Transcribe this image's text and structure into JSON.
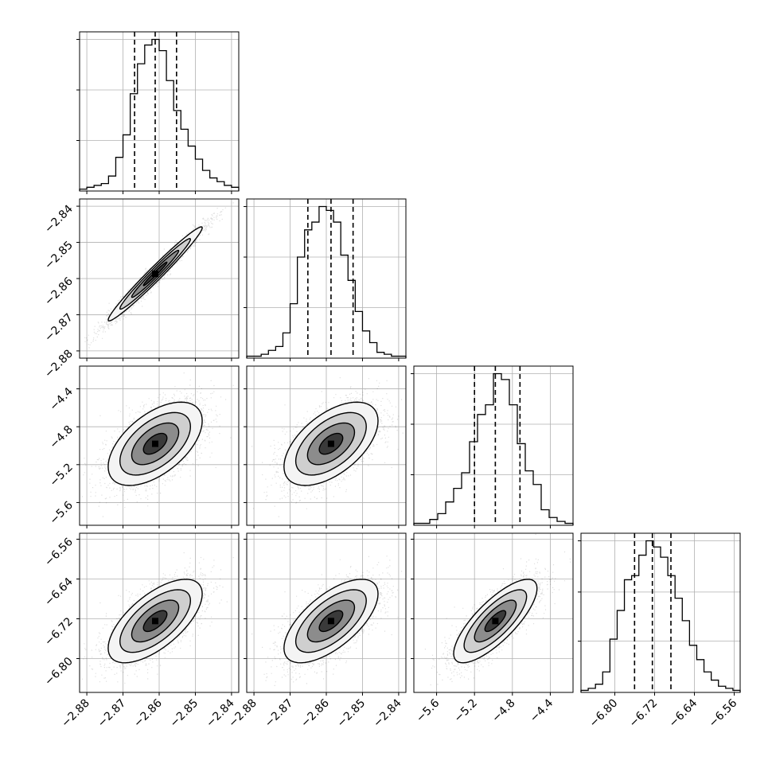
{
  "chart_data": {
    "type": "corner",
    "description_free": true,
    "n_params": 4,
    "params": [
      {
        "range": [
          -2.882,
          -2.838
        ],
        "ticks": [
          -2.88,
          -2.87,
          -2.86,
          -2.85,
          -2.84
        ],
        "tick_labels": [
          "−2.88",
          "−2.87",
          "−2.86",
          "−2.85",
          "−2.84"
        ],
        "quantiles": [
          -2.8668,
          -2.8611,
          -2.8552
        ],
        "hist_bins": [
          -2.882,
          -2.838,
          22
        ],
        "hist_counts": [
          1,
          2,
          3,
          4,
          8,
          18,
          30,
          52,
          68,
          78,
          81,
          75,
          59,
          43,
          33,
          24,
          17,
          11,
          7,
          5,
          3,
          2
        ]
      },
      {
        "range": [
          -2.882,
          -2.838
        ],
        "ticks": [
          -2.88,
          -2.87,
          -2.86,
          -2.85,
          -2.84
        ],
        "tick_labels": [
          "−2.88",
          "−2.87",
          "−2.86",
          "−2.85",
          "−2.84"
        ],
        "quantiles": [
          -2.8651,
          -2.8587,
          -2.8526
        ],
        "hist_bins": [
          -2.882,
          -2.838,
          22
        ],
        "hist_counts": [
          1,
          1,
          2,
          4,
          6,
          13,
          28,
          52,
          66,
          70,
          78,
          76,
          70,
          53,
          40,
          24,
          14,
          8,
          3,
          2,
          1,
          1
        ]
      },
      {
        "range": [
          -5.84,
          -4.16
        ],
        "ticks": [
          -5.6,
          -5.2,
          -4.8,
          -4.4
        ],
        "tick_labels": [
          "−5.6",
          "−5.2",
          "−4.8",
          "−4.4"
        ],
        "quantiles": [
          -5.2,
          -4.98,
          -4.72
        ],
        "hist_bins": [
          -5.84,
          -4.16,
          20
        ],
        "hist_counts": [
          1,
          1,
          3,
          6,
          12,
          19,
          27,
          43,
          57,
          62,
          78,
          75,
          62,
          42,
          28,
          21,
          8,
          4,
          2,
          1
        ]
      },
      {
        "range": [
          -6.868,
          -6.548
        ],
        "ticks": [
          -6.8,
          -6.72,
          -6.64,
          -6.56
        ],
        "tick_labels": [
          "−6.80",
          "−6.72",
          "−6.64",
          "−6.56"
        ],
        "quantiles": [
          -6.7603,
          -6.7245,
          -6.6872
        ],
        "hist_bins": [
          -6.868,
          -6.548,
          22
        ],
        "hist_counts": [
          1,
          2,
          4,
          10,
          26,
          40,
          55,
          57,
          67,
          74,
          71,
          66,
          57,
          46,
          35,
          23,
          16,
          10,
          6,
          3,
          2,
          1
        ]
      }
    ],
    "sigma": [
      0.0065,
      0.0065,
      0.22,
      0.042
    ],
    "correlation": [
      [
        1.0,
        0.98,
        0.55,
        0.65
      ],
      [
        0.98,
        1.0,
        0.55,
        0.65
      ],
      [
        0.55,
        0.55,
        1.0,
        0.78
      ],
      [
        0.65,
        0.65,
        0.78,
        1.0
      ]
    ],
    "samples_per_panel": 3000,
    "contour_levels": [
      0.5,
      1.0,
      1.5,
      2.0
    ],
    "grid": true,
    "colors": {
      "samples": "#000000",
      "lines": "#000000",
      "grid": "#b0b0b0",
      "background": "#ffffff"
    }
  }
}
